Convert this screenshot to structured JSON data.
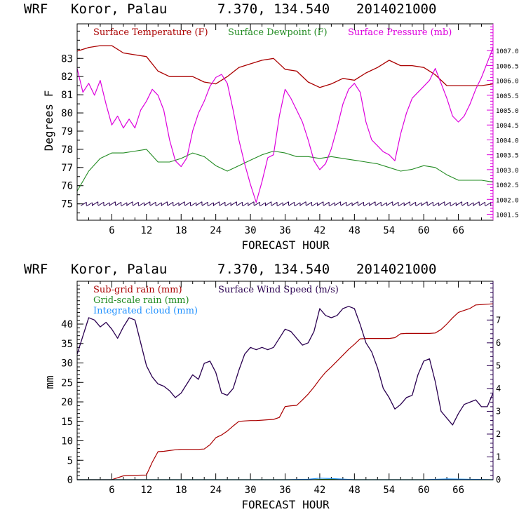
{
  "colors": {
    "temperature": "#aa0000",
    "dewpoint": "#228b22",
    "pressure": "#dd00dd",
    "wind_speed": "#2a0050",
    "subgrid_rain": "#aa0000",
    "grid_rain": "#228b22",
    "cloud": "#1e90ff"
  },
  "chart_data": [
    {
      "type": "line",
      "title": {
        "model": "WRF",
        "location": "Koror, Palau",
        "coords": "7.370, 134.540",
        "init": "2014021000"
      },
      "xlabel": "FORECAST HOUR",
      "ylabel": "Degrees F",
      "xlim": [
        0,
        72
      ],
      "ylim": [
        74.1,
        84.9
      ],
      "y2lim": [
        1001.3,
        1007.9
      ],
      "xticks": [
        6,
        12,
        18,
        24,
        30,
        36,
        42,
        48,
        54,
        60,
        66
      ],
      "xtick_labels": [
        "6",
        "12",
        "18",
        "24",
        "30",
        "36",
        "42",
        "48",
        "54",
        "60",
        "66"
      ],
      "yticks": [
        75,
        76,
        77,
        78,
        79,
        80,
        81,
        82,
        83
      ],
      "ytick_labels": [
        "75",
        "76",
        "77",
        "78",
        "79",
        "80",
        "81",
        "82",
        "83"
      ],
      "y2ticks": [
        1001.5,
        1002.0,
        1002.5,
        1003.0,
        1003.5,
        1004.0,
        1004.5,
        1005.0,
        1005.5,
        1006.0,
        1006.5,
        1007.0
      ],
      "y2tick_labels": [
        "1001.5",
        "1002.0",
        "1002.5",
        "1003.0",
        "1003.5",
        "1004.0",
        "1004.5",
        "1005.0",
        "1005.5",
        "1006.0",
        "1006.5",
        "1007.0"
      ],
      "legend": [
        "Surface Temperature (F)",
        "Surface Dewpoint (F)",
        "Surface Pressure (mb)"
      ],
      "series": [
        {
          "name": "Surface Temperature (F)",
          "axis": "left",
          "x": [
            0,
            2,
            4,
            6,
            8,
            10,
            12,
            14,
            16,
            18,
            20,
            22,
            24,
            26,
            28,
            30,
            32,
            34,
            36,
            38,
            40,
            42,
            44,
            46,
            48,
            50,
            52,
            54,
            56,
            58,
            60,
            62,
            64,
            66,
            68,
            70,
            72
          ],
          "values": [
            83.4,
            83.6,
            83.7,
            83.7,
            83.3,
            83.2,
            83.1,
            82.3,
            82.0,
            82.0,
            82.0,
            81.7,
            81.6,
            82.0,
            82.5,
            82.7,
            82.9,
            83.0,
            82.4,
            82.3,
            81.7,
            81.4,
            81.6,
            81.9,
            81.8,
            82.2,
            82.5,
            82.9,
            82.6,
            82.6,
            82.5,
            82.1,
            81.5,
            81.5,
            81.5,
            81.5,
            81.6
          ]
        },
        {
          "name": "Surface Dewpoint (F)",
          "axis": "left",
          "x": [
            0,
            2,
            4,
            6,
            8,
            10,
            12,
            14,
            16,
            18,
            20,
            22,
            24,
            26,
            28,
            30,
            32,
            34,
            36,
            38,
            40,
            42,
            44,
            46,
            48,
            50,
            52,
            54,
            56,
            58,
            60,
            62,
            64,
            66,
            68,
            70,
            72
          ],
          "values": [
            75.7,
            76.8,
            77.5,
            77.8,
            77.8,
            77.9,
            78.0,
            77.3,
            77.3,
            77.5,
            77.8,
            77.6,
            77.1,
            76.8,
            77.1,
            77.4,
            77.7,
            77.9,
            77.8,
            77.6,
            77.6,
            77.5,
            77.6,
            77.5,
            77.4,
            77.3,
            77.2,
            77.0,
            76.8,
            76.9,
            77.1,
            77.0,
            76.6,
            76.3,
            76.3,
            76.3,
            76.2
          ]
        },
        {
          "name": "Surface Pressure (mb)",
          "axis": "right",
          "x": [
            0,
            1,
            2,
            3,
            4,
            5,
            6,
            7,
            8,
            9,
            10,
            11,
            12,
            13,
            14,
            15,
            16,
            17,
            18,
            19,
            20,
            21,
            22,
            23,
            24,
            25,
            26,
            27,
            28,
            29,
            30,
            31,
            32,
            33,
            34,
            35,
            36,
            37,
            38,
            39,
            40,
            41,
            42,
            43,
            44,
            45,
            46,
            47,
            48,
            49,
            50,
            51,
            52,
            53,
            54,
            55,
            56,
            57,
            58,
            59,
            60,
            61,
            62,
            63,
            64,
            65,
            66,
            67,
            68,
            69,
            70,
            71,
            72
          ],
          "values": [
            1006.4,
            1005.6,
            1005.9,
            1005.5,
            1006.0,
            1005.2,
            1004.5,
            1004.8,
            1004.4,
            1004.7,
            1004.4,
            1005.0,
            1005.3,
            1005.7,
            1005.5,
            1005.0,
            1004.0,
            1003.3,
            1003.1,
            1003.4,
            1004.3,
            1004.9,
            1005.3,
            1005.8,
            1006.1,
            1006.2,
            1005.9,
            1005.0,
            1004.0,
            1003.2,
            1002.5,
            1001.9,
            1002.6,
            1003.4,
            1003.5,
            1004.8,
            1005.7,
            1005.4,
            1005.0,
            1004.6,
            1004.0,
            1003.3,
            1003.0,
            1003.2,
            1003.7,
            1004.4,
            1005.2,
            1005.7,
            1005.9,
            1005.6,
            1004.6,
            1004.0,
            1003.8,
            1003.6,
            1003.5,
            1003.3,
            1004.2,
            1004.9,
            1005.4,
            1005.6,
            1005.8,
            1006.0,
            1006.4,
            1005.9,
            1005.4,
            1004.8,
            1004.6,
            1004.8,
            1005.2,
            1005.7,
            1006.1,
            1006.6,
            1007.1
          ]
        }
      ]
    },
    {
      "type": "line",
      "title": {
        "model": "WRF",
        "location": "Koror, Palau",
        "coords": "7.370, 134.540",
        "init": "2014021000"
      },
      "xlabel": "FORECAST HOUR",
      "ylabel": "mm",
      "xlim": [
        0,
        72
      ],
      "ylim": [
        0,
        51
      ],
      "y2lim": [
        0,
        8.7
      ],
      "xticks": [
        6,
        12,
        18,
        24,
        30,
        36,
        42,
        48,
        54,
        60,
        66
      ],
      "xtick_labels": [
        "6",
        "12",
        "18",
        "24",
        "30",
        "36",
        "42",
        "48",
        "54",
        "60",
        "66"
      ],
      "yticks": [
        0,
        5,
        10,
        15,
        20,
        25,
        30,
        35,
        40
      ],
      "ytick_labels": [
        "0",
        "5",
        "10",
        "15",
        "20",
        "25",
        "30",
        "35",
        "40"
      ],
      "y2ticks": [
        0,
        1,
        2,
        3,
        4,
        5,
        6,
        7
      ],
      "y2tick_labels": [
        "0",
        "1",
        "2",
        "3",
        "4",
        "5",
        "6",
        "7"
      ],
      "legend": [
        "Sub-grid rain (mm)",
        "Grid-scale rain (mm)",
        "Integrated cloud (mm)",
        "Surface Wind Speed (m/s)"
      ],
      "series": [
        {
          "name": "Sub-grid rain (mm)",
          "axis": "left",
          "x": [
            0,
            6,
            7,
            8,
            9,
            12,
            13,
            14,
            15,
            16,
            17,
            18,
            19,
            20,
            21,
            22,
            23,
            24,
            25,
            26,
            27,
            28,
            29,
            30,
            31,
            32,
            33,
            34,
            35,
            36,
            37,
            38,
            39,
            40,
            41,
            42,
            43,
            44,
            45,
            46,
            47,
            48,
            49,
            50,
            51,
            52,
            53,
            54,
            55,
            56,
            57,
            58,
            59,
            60,
            61,
            62,
            63,
            64,
            65,
            66,
            67,
            68,
            69,
            70,
            71,
            72
          ],
          "values": [
            0,
            0,
            0.5,
            1.0,
            1.1,
            1.2,
            4.5,
            7.2,
            7.3,
            7.5,
            7.7,
            7.8,
            7.8,
            7.8,
            7.8,
            7.9,
            9.0,
            10.8,
            11.5,
            12.5,
            13.8,
            15.0,
            15.1,
            15.2,
            15.2,
            15.3,
            15.4,
            15.5,
            16.0,
            18.8,
            19.0,
            19.1,
            20.5,
            22.0,
            23.8,
            25.8,
            27.6,
            29.0,
            30.5,
            32.0,
            33.5,
            34.8,
            36.2,
            36.3,
            36.3,
            36.3,
            36.3,
            36.3,
            36.5,
            37.5,
            37.6,
            37.6,
            37.6,
            37.6,
            37.6,
            37.7,
            38.6,
            40.0,
            41.6,
            43.0,
            43.5,
            44.0,
            44.9,
            45.0,
            45.1,
            45.2
          ]
        },
        {
          "name": "Grid-scale rain (mm)",
          "axis": "left",
          "x": [
            0,
            24,
            36,
            40,
            44,
            48,
            60,
            72
          ],
          "values": [
            0,
            0,
            0,
            0,
            0.1,
            0,
            0,
            0
          ]
        },
        {
          "name": "Integrated cloud (mm)",
          "axis": "left",
          "x": [
            0,
            24,
            36,
            40,
            42,
            44,
            48,
            60,
            64,
            72
          ],
          "values": [
            0,
            0,
            0,
            0.1,
            0.4,
            0.3,
            0,
            0,
            0.2,
            0
          ]
        },
        {
          "name": "Surface Wind Speed (m/s)",
          "axis": "right",
          "x": [
            0,
            1,
            2,
            3,
            4,
            5,
            6,
            7,
            8,
            9,
            10,
            11,
            12,
            13,
            14,
            15,
            16,
            17,
            18,
            19,
            20,
            21,
            22,
            23,
            24,
            25,
            26,
            27,
            28,
            29,
            30,
            31,
            32,
            33,
            34,
            35,
            36,
            37,
            38,
            39,
            40,
            41,
            42,
            43,
            44,
            45,
            46,
            47,
            48,
            49,
            50,
            51,
            52,
            53,
            54,
            55,
            56,
            57,
            58,
            59,
            60,
            61,
            62,
            63,
            64,
            65,
            66,
            67,
            68,
            69,
            70,
            71,
            72
          ],
          "values": [
            5.5,
            6.3,
            7.1,
            7.0,
            6.7,
            6.9,
            6.6,
            6.2,
            6.7,
            7.1,
            7.0,
            6.0,
            5.0,
            4.5,
            4.2,
            4.1,
            3.9,
            3.6,
            3.8,
            4.2,
            4.6,
            4.4,
            5.1,
            5.2,
            4.7,
            3.8,
            3.7,
            4.0,
            4.8,
            5.5,
            5.8,
            5.7,
            5.8,
            5.7,
            5.8,
            6.2,
            6.6,
            6.5,
            6.2,
            5.9,
            6.0,
            6.5,
            7.5,
            7.2,
            7.1,
            7.2,
            7.5,
            7.6,
            7.5,
            6.8,
            6.0,
            5.6,
            4.9,
            4.0,
            3.6,
            3.1,
            3.3,
            3.6,
            3.7,
            4.6,
            5.2,
            5.3,
            4.3,
            3.0,
            2.7,
            2.4,
            2.9,
            3.3,
            3.4,
            3.5,
            3.2,
            3.2,
            3.8
          ]
        }
      ]
    }
  ]
}
